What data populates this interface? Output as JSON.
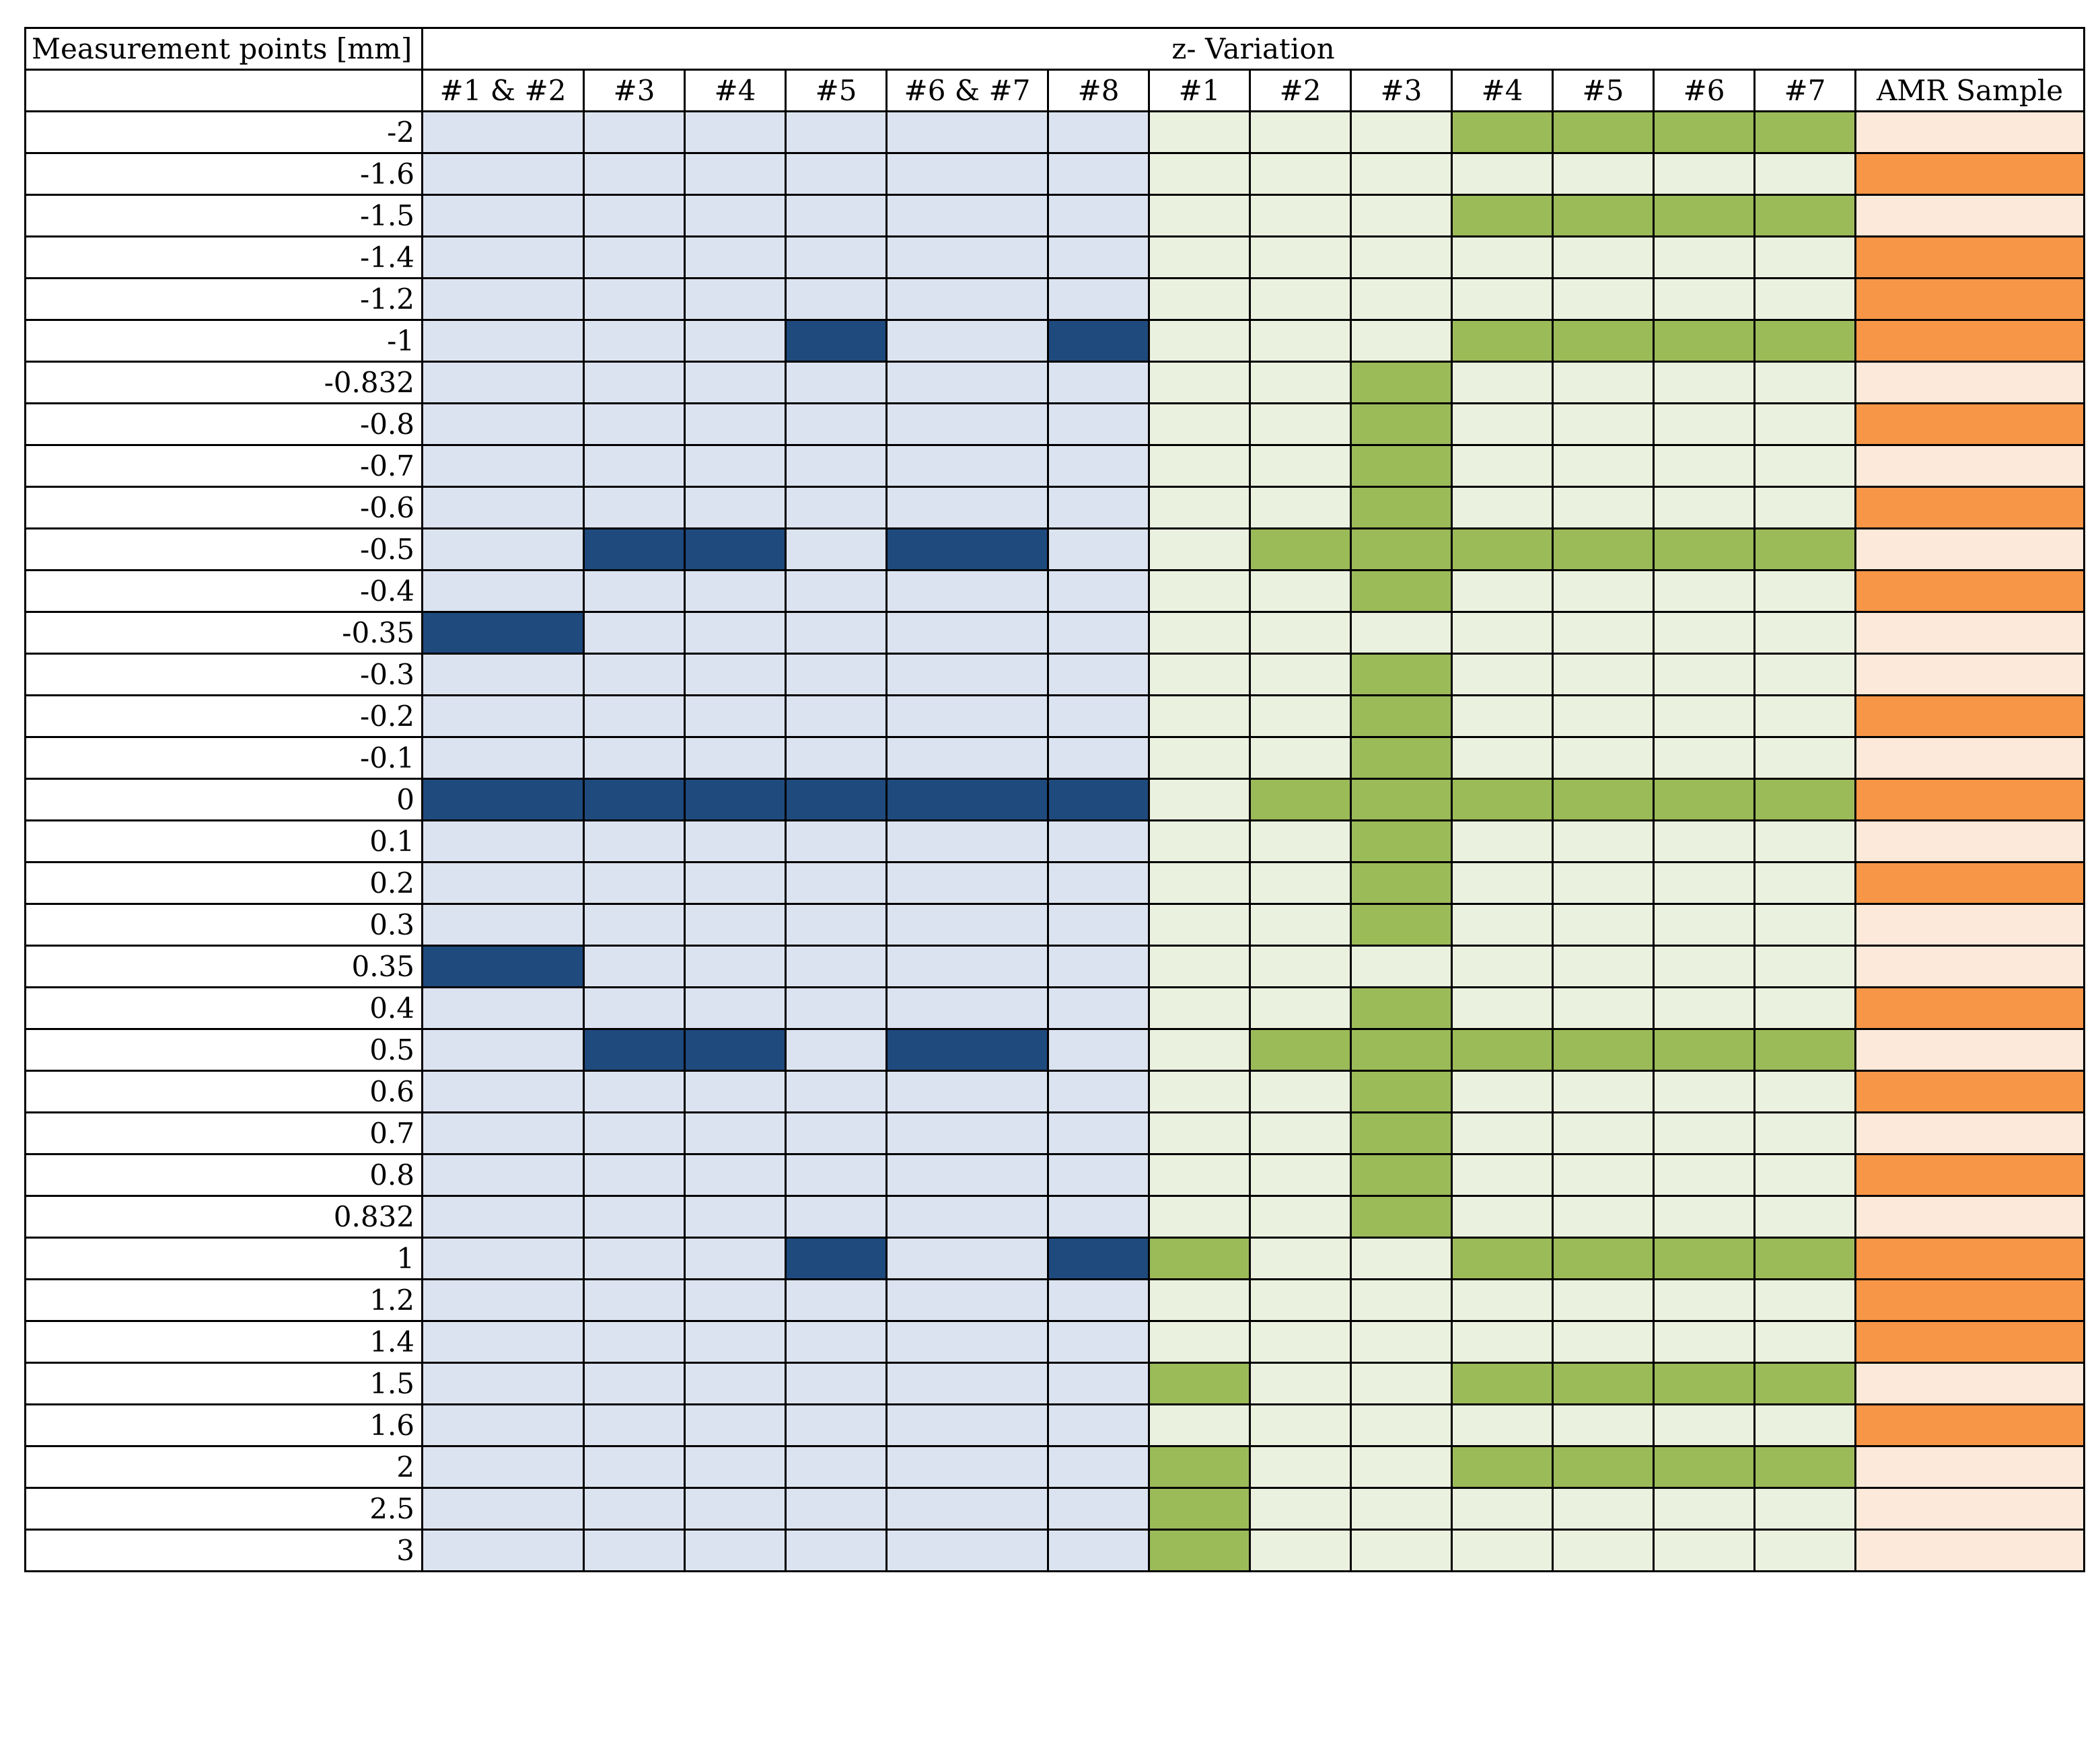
{
  "header": {
    "corner_label": "Measurement points [mm]",
    "group_label": "z- Variation"
  },
  "columns": [
    "#1 & #2",
    "#3",
    "#4",
    "#5",
    "#6 & #7",
    "#8",
    "#1",
    "#2",
    "#3",
    "#4",
    "#5",
    "#6",
    "#7",
    "AMR Sample"
  ],
  "colors": {
    "blue_light": "#dce3f0",
    "blue_dark": "#1f4a7d",
    "green_light": "#ebf1df",
    "green_dark": "#9bbb59",
    "orange_light": "#fde9d9",
    "orange_dark": "#f79646"
  },
  "rows": [
    {
      "label": "-2",
      "marks": [
        0,
        0,
        0,
        0,
        0,
        0,
        0,
        0,
        0,
        1,
        1,
        1,
        1,
        0
      ]
    },
    {
      "label": "-1.6",
      "marks": [
        0,
        0,
        0,
        0,
        0,
        0,
        0,
        0,
        0,
        0,
        0,
        0,
        0,
        1
      ]
    },
    {
      "label": "-1.5",
      "marks": [
        0,
        0,
        0,
        0,
        0,
        0,
        0,
        0,
        0,
        1,
        1,
        1,
        1,
        0
      ]
    },
    {
      "label": "-1.4",
      "marks": [
        0,
        0,
        0,
        0,
        0,
        0,
        0,
        0,
        0,
        0,
        0,
        0,
        0,
        1
      ]
    },
    {
      "label": "-1.2",
      "marks": [
        0,
        0,
        0,
        0,
        0,
        0,
        0,
        0,
        0,
        0,
        0,
        0,
        0,
        1
      ]
    },
    {
      "label": "-1",
      "marks": [
        0,
        0,
        0,
        1,
        0,
        1,
        0,
        0,
        0,
        1,
        1,
        1,
        1,
        1
      ]
    },
    {
      "label": "-0.832",
      "marks": [
        0,
        0,
        0,
        0,
        0,
        0,
        0,
        0,
        1,
        0,
        0,
        0,
        0,
        0
      ]
    },
    {
      "label": "-0.8",
      "marks": [
        0,
        0,
        0,
        0,
        0,
        0,
        0,
        0,
        1,
        0,
        0,
        0,
        0,
        1
      ]
    },
    {
      "label": "-0.7",
      "marks": [
        0,
        0,
        0,
        0,
        0,
        0,
        0,
        0,
        1,
        0,
        0,
        0,
        0,
        0
      ]
    },
    {
      "label": "-0.6",
      "marks": [
        0,
        0,
        0,
        0,
        0,
        0,
        0,
        0,
        1,
        0,
        0,
        0,
        0,
        1
      ]
    },
    {
      "label": "-0.5",
      "marks": [
        0,
        1,
        1,
        0,
        1,
        0,
        0,
        1,
        1,
        1,
        1,
        1,
        1,
        0
      ]
    },
    {
      "label": "-0.4",
      "marks": [
        0,
        0,
        0,
        0,
        0,
        0,
        0,
        0,
        1,
        0,
        0,
        0,
        0,
        1
      ]
    },
    {
      "label": "-0.35",
      "marks": [
        1,
        0,
        0,
        0,
        0,
        0,
        0,
        0,
        0,
        0,
        0,
        0,
        0,
        0
      ]
    },
    {
      "label": "-0.3",
      "marks": [
        0,
        0,
        0,
        0,
        0,
        0,
        0,
        0,
        1,
        0,
        0,
        0,
        0,
        0
      ]
    },
    {
      "label": "-0.2",
      "marks": [
        0,
        0,
        0,
        0,
        0,
        0,
        0,
        0,
        1,
        0,
        0,
        0,
        0,
        1
      ]
    },
    {
      "label": "-0.1",
      "marks": [
        0,
        0,
        0,
        0,
        0,
        0,
        0,
        0,
        1,
        0,
        0,
        0,
        0,
        0
      ]
    },
    {
      "label": "0",
      "marks": [
        1,
        1,
        1,
        1,
        1,
        1,
        0,
        1,
        1,
        1,
        1,
        1,
        1,
        1
      ]
    },
    {
      "label": "0.1",
      "marks": [
        0,
        0,
        0,
        0,
        0,
        0,
        0,
        0,
        1,
        0,
        0,
        0,
        0,
        0
      ]
    },
    {
      "label": "0.2",
      "marks": [
        0,
        0,
        0,
        0,
        0,
        0,
        0,
        0,
        1,
        0,
        0,
        0,
        0,
        1
      ]
    },
    {
      "label": "0.3",
      "marks": [
        0,
        0,
        0,
        0,
        0,
        0,
        0,
        0,
        1,
        0,
        0,
        0,
        0,
        0
      ]
    },
    {
      "label": "0.35",
      "marks": [
        1,
        0,
        0,
        0,
        0,
        0,
        0,
        0,
        0,
        0,
        0,
        0,
        0,
        0
      ]
    },
    {
      "label": "0.4",
      "marks": [
        0,
        0,
        0,
        0,
        0,
        0,
        0,
        0,
        1,
        0,
        0,
        0,
        0,
        1
      ]
    },
    {
      "label": "0.5",
      "marks": [
        0,
        1,
        1,
        0,
        1,
        0,
        0,
        1,
        1,
        1,
        1,
        1,
        1,
        0
      ]
    },
    {
      "label": "0.6",
      "marks": [
        0,
        0,
        0,
        0,
        0,
        0,
        0,
        0,
        1,
        0,
        0,
        0,
        0,
        1
      ]
    },
    {
      "label": "0.7",
      "marks": [
        0,
        0,
        0,
        0,
        0,
        0,
        0,
        0,
        1,
        0,
        0,
        0,
        0,
        0
      ]
    },
    {
      "label": "0.8",
      "marks": [
        0,
        0,
        0,
        0,
        0,
        0,
        0,
        0,
        1,
        0,
        0,
        0,
        0,
        1
      ]
    },
    {
      "label": "0.832",
      "marks": [
        0,
        0,
        0,
        0,
        0,
        0,
        0,
        0,
        1,
        0,
        0,
        0,
        0,
        0
      ]
    },
    {
      "label": "1",
      "marks": [
        0,
        0,
        0,
        1,
        0,
        1,
        1,
        0,
        0,
        1,
        1,
        1,
        1,
        1
      ]
    },
    {
      "label": "1.2",
      "marks": [
        0,
        0,
        0,
        0,
        0,
        0,
        0,
        0,
        0,
        0,
        0,
        0,
        0,
        1
      ]
    },
    {
      "label": "1.4",
      "marks": [
        0,
        0,
        0,
        0,
        0,
        0,
        0,
        0,
        0,
        0,
        0,
        0,
        0,
        1
      ]
    },
    {
      "label": "1.5",
      "marks": [
        0,
        0,
        0,
        0,
        0,
        0,
        1,
        0,
        0,
        1,
        1,
        1,
        1,
        0
      ]
    },
    {
      "label": "1.6",
      "marks": [
        0,
        0,
        0,
        0,
        0,
        0,
        0,
        0,
        0,
        0,
        0,
        0,
        0,
        1
      ]
    },
    {
      "label": "2",
      "marks": [
        0,
        0,
        0,
        0,
        0,
        0,
        1,
        0,
        0,
        1,
        1,
        1,
        1,
        0
      ]
    },
    {
      "label": "2.5",
      "marks": [
        0,
        0,
        0,
        0,
        0,
        0,
        1,
        0,
        0,
        0,
        0,
        0,
        0,
        0
      ]
    },
    {
      "label": "3",
      "marks": [
        0,
        0,
        0,
        0,
        0,
        0,
        1,
        0,
        0,
        0,
        0,
        0,
        0,
        0
      ]
    }
  ]
}
